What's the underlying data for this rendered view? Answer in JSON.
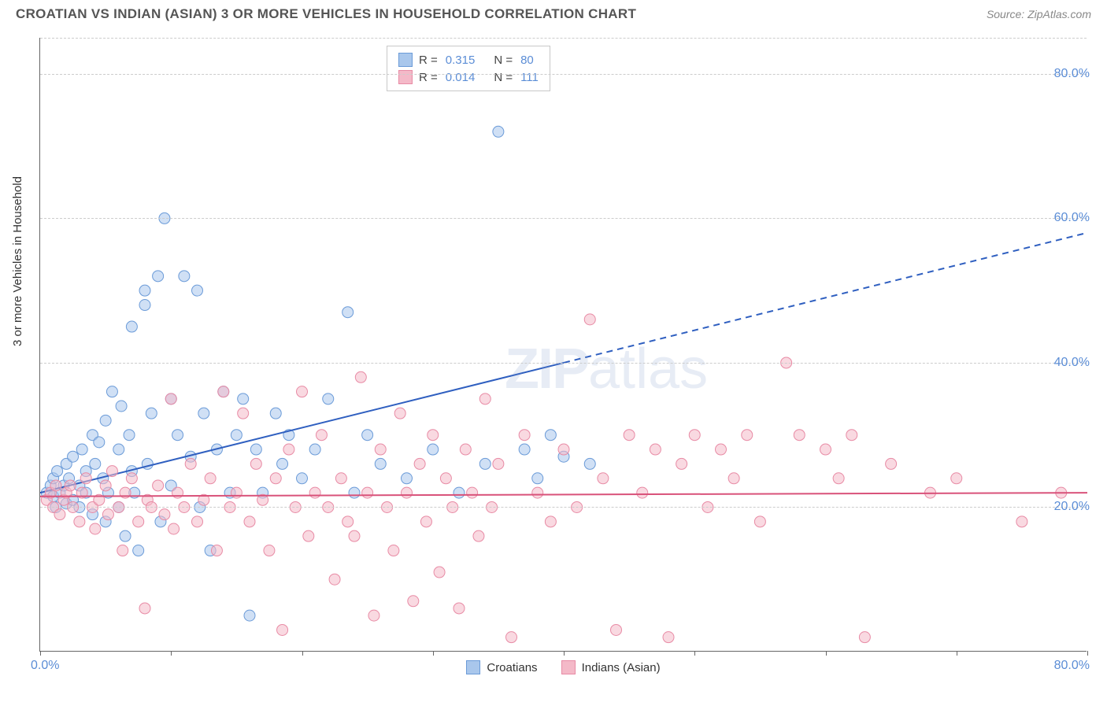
{
  "title": "CROATIAN VS INDIAN (ASIAN) 3 OR MORE VEHICLES IN HOUSEHOLD CORRELATION CHART",
  "source_label": "Source: ZipAtlas.com",
  "y_axis_label": "3 or more Vehicles in Household",
  "watermark": {
    "bold": "ZIP",
    "light": "atlas"
  },
  "chart": {
    "type": "scatter",
    "xlim": [
      0,
      80
    ],
    "ylim": [
      0,
      85
    ],
    "x_ticks": [
      0,
      10,
      20,
      30,
      40,
      50,
      60,
      70,
      80
    ],
    "y_gridlines": [
      20,
      40,
      60,
      80
    ],
    "x_origin_label": "0.0%",
    "x_max_label": "80.0%",
    "y_tick_labels": [
      "20.0%",
      "40.0%",
      "60.0%",
      "80.0%"
    ],
    "background_color": "#ffffff",
    "grid_color": "#cccccc",
    "axis_color": "#666666",
    "value_color": "#5b8dd6",
    "marker_radius": 7,
    "marker_opacity": 0.55,
    "series": [
      {
        "name": "Croatians",
        "fill": "#a9c7ec",
        "stroke": "#6b9bd8",
        "R": "0.315",
        "N": "80",
        "trend": {
          "color": "#2f5fc0",
          "width": 2,
          "solid_to_x": 40,
          "y_at_0": 22,
          "y_at_80": 58
        },
        "points": [
          [
            0.5,
            22
          ],
          [
            0.8,
            23
          ],
          [
            1,
            21.5
          ],
          [
            1,
            24
          ],
          [
            1.2,
            20
          ],
          [
            1.3,
            25
          ],
          [
            1.5,
            22
          ],
          [
            1.8,
            23
          ],
          [
            2,
            20.5
          ],
          [
            2,
            26
          ],
          [
            2.2,
            24
          ],
          [
            2.5,
            21
          ],
          [
            2.5,
            27
          ],
          [
            3,
            23
          ],
          [
            3,
            20
          ],
          [
            3.2,
            28
          ],
          [
            3.5,
            25
          ],
          [
            3.5,
            22
          ],
          [
            4,
            30
          ],
          [
            4,
            19
          ],
          [
            4.2,
            26
          ],
          [
            4.5,
            29
          ],
          [
            4.8,
            24
          ],
          [
            5,
            32
          ],
          [
            5,
            18
          ],
          [
            5.2,
            22
          ],
          [
            5.5,
            36
          ],
          [
            6,
            28
          ],
          [
            6,
            20
          ],
          [
            6.2,
            34
          ],
          [
            6.5,
            16
          ],
          [
            6.8,
            30
          ],
          [
            7,
            25
          ],
          [
            7,
            45
          ],
          [
            7.2,
            22
          ],
          [
            7.5,
            14
          ],
          [
            8,
            50
          ],
          [
            8,
            48
          ],
          [
            8.2,
            26
          ],
          [
            8.5,
            33
          ],
          [
            9,
            52
          ],
          [
            9.2,
            18
          ],
          [
            9.5,
            60
          ],
          [
            10,
            35
          ],
          [
            10,
            23
          ],
          [
            10.5,
            30
          ],
          [
            11,
            52
          ],
          [
            11.5,
            27
          ],
          [
            12,
            50
          ],
          [
            12.2,
            20
          ],
          [
            12.5,
            33
          ],
          [
            13,
            14
          ],
          [
            13.5,
            28
          ],
          [
            14,
            36
          ],
          [
            14.5,
            22
          ],
          [
            15,
            30
          ],
          [
            15.5,
            35
          ],
          [
            16,
            5
          ],
          [
            16.5,
            28
          ],
          [
            17,
            22
          ],
          [
            18,
            33
          ],
          [
            18.5,
            26
          ],
          [
            19,
            30
          ],
          [
            20,
            24
          ],
          [
            21,
            28
          ],
          [
            22,
            35
          ],
          [
            23.5,
            47
          ],
          [
            24,
            22
          ],
          [
            25,
            30
          ],
          [
            26,
            26
          ],
          [
            28,
            24
          ],
          [
            30,
            28
          ],
          [
            32,
            22
          ],
          [
            34,
            26
          ],
          [
            35,
            72
          ],
          [
            37,
            28
          ],
          [
            38,
            24
          ],
          [
            39,
            30
          ],
          [
            40,
            27
          ],
          [
            42,
            26
          ]
        ]
      },
      {
        "name": "Indians (Asian)",
        "fill": "#f4b9c8",
        "stroke": "#e88ba5",
        "R": "0.014",
        "N": "111",
        "trend": {
          "color": "#d9527a",
          "width": 2,
          "solid_to_x": 80,
          "y_at_0": 21.5,
          "y_at_80": 22
        },
        "points": [
          [
            0.5,
            21
          ],
          [
            0.8,
            22
          ],
          [
            1,
            20
          ],
          [
            1.2,
            23
          ],
          [
            1.5,
            19
          ],
          [
            1.8,
            21
          ],
          [
            2,
            22
          ],
          [
            2.3,
            23
          ],
          [
            2.5,
            20
          ],
          [
            3,
            18
          ],
          [
            3.2,
            22
          ],
          [
            3.5,
            24
          ],
          [
            4,
            20
          ],
          [
            4.2,
            17
          ],
          [
            4.5,
            21
          ],
          [
            5,
            23
          ],
          [
            5.2,
            19
          ],
          [
            5.5,
            25
          ],
          [
            6,
            20
          ],
          [
            6.3,
            14
          ],
          [
            6.5,
            22
          ],
          [
            7,
            24
          ],
          [
            7.5,
            18
          ],
          [
            8,
            6
          ],
          [
            8.2,
            21
          ],
          [
            8.5,
            20
          ],
          [
            9,
            23
          ],
          [
            9.5,
            19
          ],
          [
            10,
            35
          ],
          [
            10.2,
            17
          ],
          [
            10.5,
            22
          ],
          [
            11,
            20
          ],
          [
            11.5,
            26
          ],
          [
            12,
            18
          ],
          [
            12.5,
            21
          ],
          [
            13,
            24
          ],
          [
            13.5,
            14
          ],
          [
            14,
            36
          ],
          [
            14.5,
            20
          ],
          [
            15,
            22
          ],
          [
            15.5,
            33
          ],
          [
            16,
            18
          ],
          [
            16.5,
            26
          ],
          [
            17,
            21
          ],
          [
            17.5,
            14
          ],
          [
            18,
            24
          ],
          [
            18.5,
            3
          ],
          [
            19,
            28
          ],
          [
            19.5,
            20
          ],
          [
            20,
            36
          ],
          [
            20.5,
            16
          ],
          [
            21,
            22
          ],
          [
            21.5,
            30
          ],
          [
            22,
            20
          ],
          [
            22.5,
            10
          ],
          [
            23,
            24
          ],
          [
            23.5,
            18
          ],
          [
            24,
            16
          ],
          [
            24.5,
            38
          ],
          [
            25,
            22
          ],
          [
            25.5,
            5
          ],
          [
            26,
            28
          ],
          [
            26.5,
            20
          ],
          [
            27,
            14
          ],
          [
            27.5,
            33
          ],
          [
            28,
            22
          ],
          [
            28.5,
            7
          ],
          [
            29,
            26
          ],
          [
            29.5,
            18
          ],
          [
            30,
            30
          ],
          [
            30.5,
            11
          ],
          [
            31,
            24
          ],
          [
            31.5,
            20
          ],
          [
            32,
            6
          ],
          [
            32.5,
            28
          ],
          [
            33,
            22
          ],
          [
            33.5,
            16
          ],
          [
            34,
            35
          ],
          [
            34.5,
            20
          ],
          [
            35,
            26
          ],
          [
            36,
            2
          ],
          [
            37,
            30
          ],
          [
            38,
            22
          ],
          [
            39,
            18
          ],
          [
            40,
            28
          ],
          [
            41,
            20
          ],
          [
            42,
            46
          ],
          [
            43,
            24
          ],
          [
            44,
            3
          ],
          [
            45,
            30
          ],
          [
            46,
            22
          ],
          [
            47,
            28
          ],
          [
            48,
            2
          ],
          [
            49,
            26
          ],
          [
            50,
            30
          ],
          [
            51,
            20
          ],
          [
            52,
            28
          ],
          [
            53,
            24
          ],
          [
            54,
            30
          ],
          [
            55,
            18
          ],
          [
            57,
            40
          ],
          [
            58,
            30
          ],
          [
            60,
            28
          ],
          [
            61,
            24
          ],
          [
            62,
            30
          ],
          [
            63,
            2
          ],
          [
            65,
            26
          ],
          [
            68,
            22
          ],
          [
            70,
            24
          ],
          [
            75,
            18
          ],
          [
            78,
            22
          ]
        ]
      }
    ]
  },
  "legend_bottom": [
    {
      "label": "Croatians",
      "series_idx": 0
    },
    {
      "label": "Indians (Asian)",
      "series_idx": 1
    }
  ]
}
